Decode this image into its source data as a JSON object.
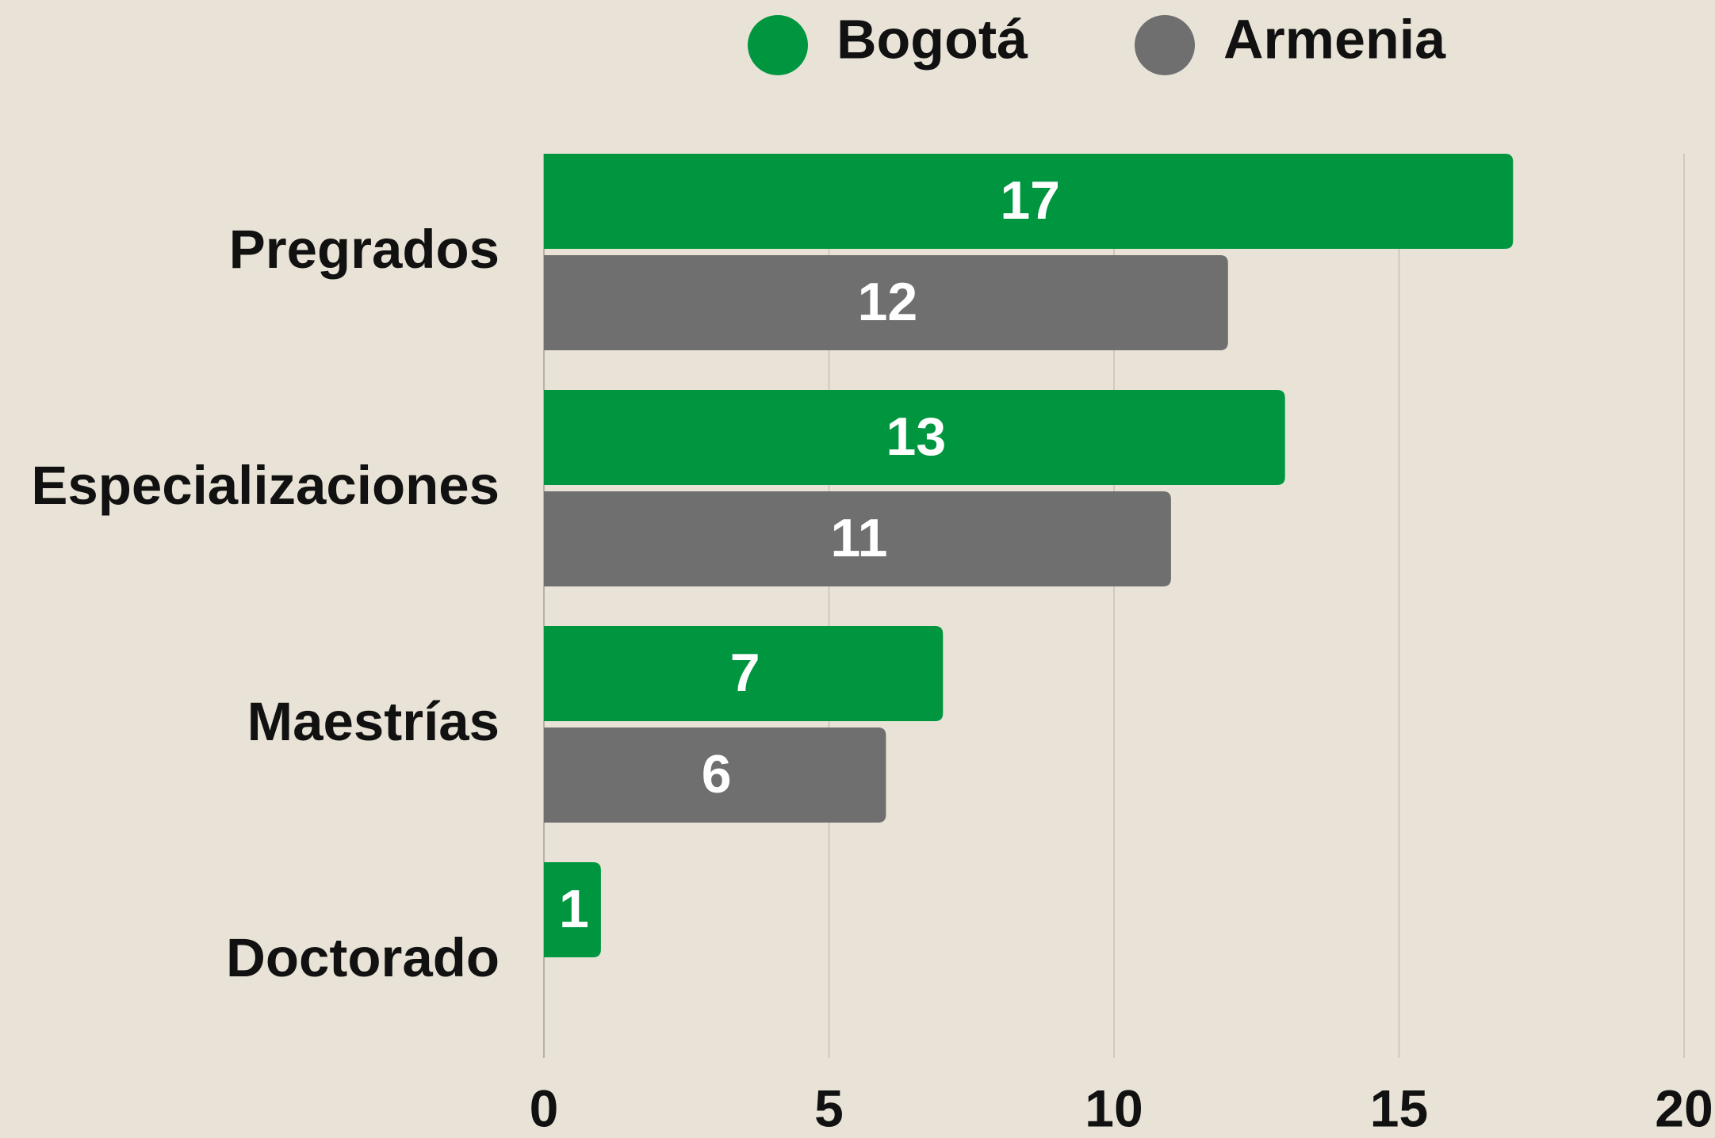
{
  "chart_data": {
    "type": "barh",
    "categories": [
      "Pregrados",
      "Especializaciones",
      "Maestrías",
      "Doctorado"
    ],
    "series": [
      {
        "name": "Bogotá",
        "color": "#00963f",
        "values": [
          17,
          13,
          7,
          1
        ]
      },
      {
        "name": "Armenia",
        "color": "#6f6f6f",
        "values": [
          12,
          11,
          6,
          null
        ]
      }
    ],
    "xlim": [
      0,
      20
    ],
    "xticks": [
      0,
      5,
      10,
      15,
      20
    ],
    "grid": true,
    "legend": "top"
  }
}
